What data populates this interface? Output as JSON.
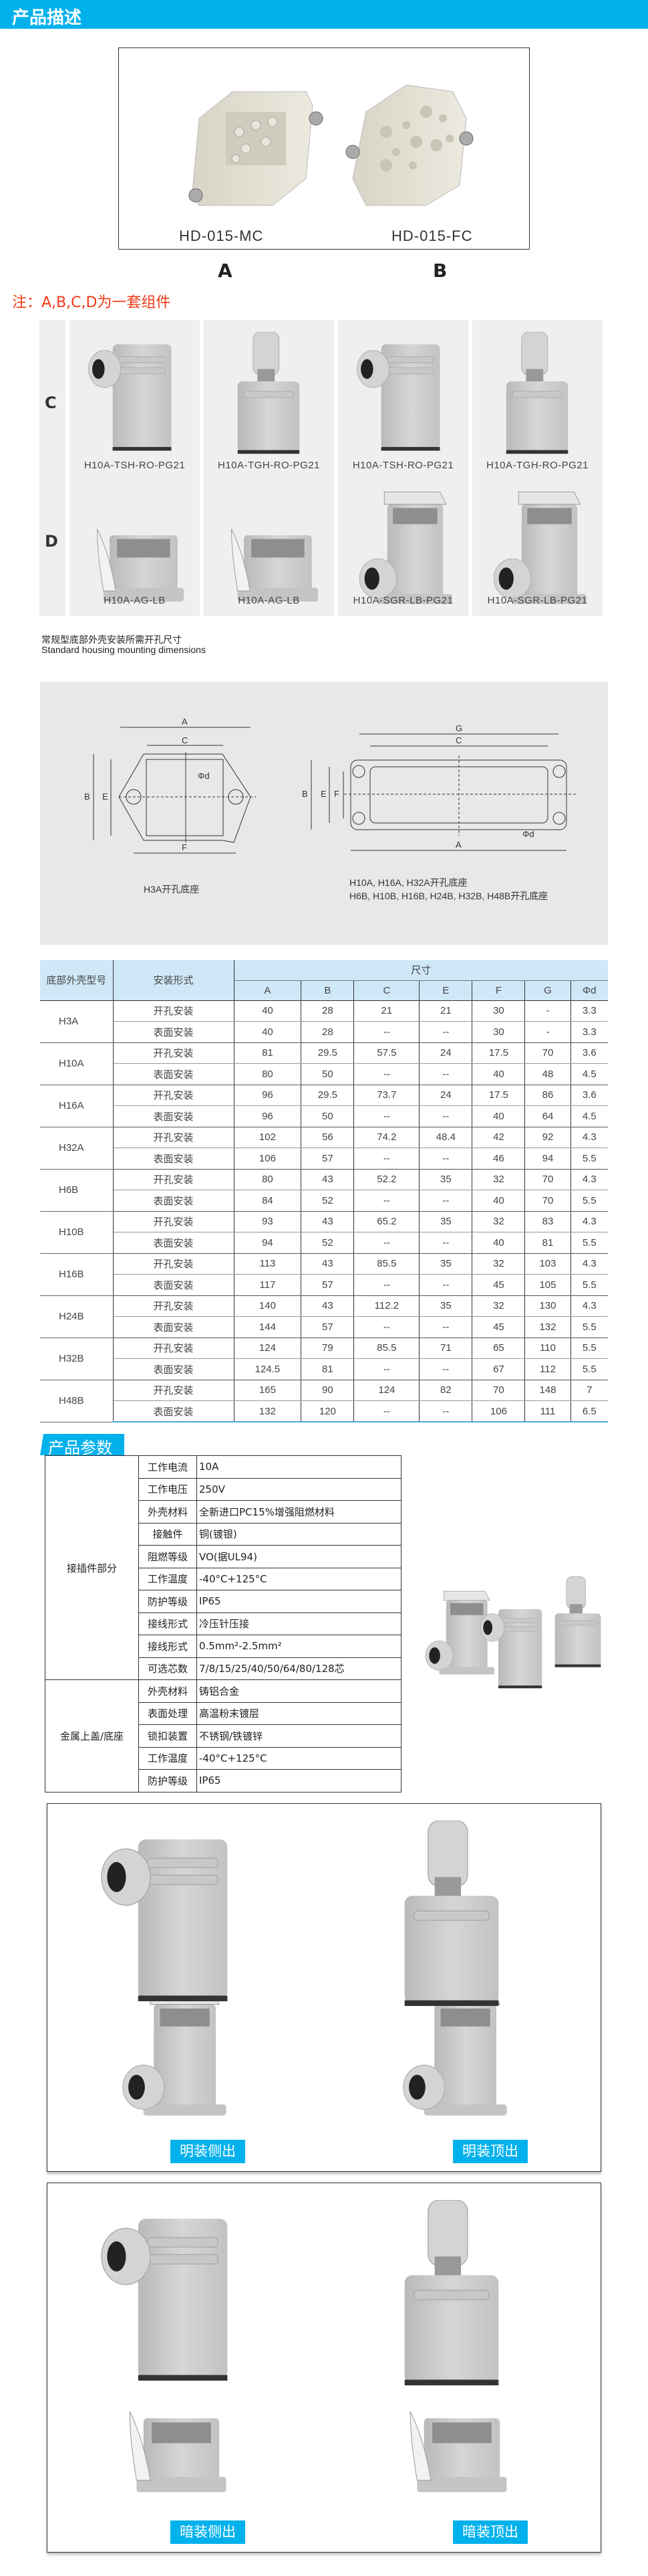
{
  "header": {
    "title": "产品描述"
  },
  "products": [
    {
      "name": "HD-015-MC",
      "letter": "A"
    },
    {
      "name": "HD-015-FC",
      "letter": "B"
    }
  ],
  "note": "注：A,B,C,D为一套组件",
  "grid": {
    "rows": [
      {
        "label": "C",
        "items": [
          "H10A-TSH-RO-PG21",
          "H10A-TGH-RO-PG21",
          "H10A-TSH-RO-PG21",
          "H10A-TGH-RO-PG21"
        ]
      },
      {
        "label": "D",
        "items": [
          "H10A-AG-LB",
          "H10A-AG-LB",
          "H10A-SGR-LB-PG21",
          "H10A-SGR-LB-PG21"
        ]
      }
    ]
  },
  "standard": {
    "cn": "常规型底部外壳安装所需开孔尺寸",
    "en": "Standard housing mounting dimensions"
  },
  "drawing": {
    "labels": {
      "A": "A",
      "B": "B",
      "C": "C",
      "E": "E",
      "F": "F",
      "G": "G",
      "d": "Φd"
    },
    "left_caption": "H3A开孔底座",
    "right_caption1": "H10A, H16A, H32A开孔底座",
    "right_caption2": "H6B, H10B, H16B, H24B, H32B, H48B开孔底座"
  },
  "dim_table": {
    "col_model": "底部外壳型号",
    "col_mount": "安装形式",
    "col_size": "尺寸",
    "cols": [
      "A",
      "B",
      "C",
      "E",
      "F",
      "G",
      "Φd"
    ],
    "groups": [
      {
        "model": "H3A",
        "rows": [
          [
            "开孔安装",
            "40",
            "28",
            "21",
            "21",
            "30",
            "-",
            "3.3"
          ],
          [
            "表面安装",
            "40",
            "28",
            "--",
            "--",
            "30",
            "-",
            "3.3"
          ]
        ]
      },
      {
        "model": "H10A",
        "rows": [
          [
            "开孔安装",
            "81",
            "29.5",
            "57.5",
            "24",
            "17.5",
            "70",
            "3.6"
          ],
          [
            "表面安装",
            "80",
            "50",
            "--",
            "--",
            "40",
            "48",
            "4.5"
          ]
        ]
      },
      {
        "model": "H16A",
        "rows": [
          [
            "开孔安装",
            "96",
            "29.5",
            "73.7",
            "24",
            "17.5",
            "86",
            "3.6"
          ],
          [
            "表面安装",
            "96",
            "50",
            "--",
            "--",
            "40",
            "64",
            "4.5"
          ]
        ]
      },
      {
        "model": "H32A",
        "rows": [
          [
            "开孔安装",
            "102",
            "56",
            "74.2",
            "48.4",
            "42",
            "92",
            "4.3"
          ],
          [
            "表面安装",
            "106",
            "57",
            "--",
            "--",
            "46",
            "94",
            "5.5"
          ]
        ]
      },
      {
        "model": "H6B",
        "rows": [
          [
            "开孔安装",
            "80",
            "43",
            "52.2",
            "35",
            "32",
            "70",
            "4.3"
          ],
          [
            "表面安装",
            "84",
            "52",
            "--",
            "--",
            "40",
            "70",
            "5.5"
          ]
        ]
      },
      {
        "model": "H10B",
        "rows": [
          [
            "开孔安装",
            "93",
            "43",
            "65.2",
            "35",
            "32",
            "83",
            "4.3"
          ],
          [
            "表面安装",
            "94",
            "52",
            "--",
            "--",
            "40",
            "81",
            "5.5"
          ]
        ]
      },
      {
        "model": "H16B",
        "rows": [
          [
            "开孔安装",
            "113",
            "43",
            "85.5",
            "35",
            "32",
            "103",
            "4.3"
          ],
          [
            "表面安装",
            "117",
            "57",
            "--",
            "--",
            "45",
            "105",
            "5.5"
          ]
        ]
      },
      {
        "model": "H24B",
        "rows": [
          [
            "开孔安装",
            "140",
            "43",
            "112.2",
            "35",
            "32",
            "130",
            "4.3"
          ],
          [
            "表面安装",
            "144",
            "57",
            "--",
            "--",
            "45",
            "132",
            "5.5"
          ]
        ]
      },
      {
        "model": "H32B",
        "rows": [
          [
            "开孔安装",
            "124",
            "79",
            "85.5",
            "71",
            "65",
            "110",
            "5.5"
          ],
          [
            "表面安装",
            "124.5",
            "81",
            "--",
            "--",
            "67",
            "112",
            "5.5"
          ]
        ]
      },
      {
        "model": "H48B",
        "rows": [
          [
            "开孔安装",
            "165",
            "90",
            "124",
            "82",
            "70",
            "148",
            "7"
          ],
          [
            "表面安装",
            "132",
            "120",
            "--",
            "--",
            "106",
            "111",
            "6.5"
          ]
        ]
      }
    ]
  },
  "params": {
    "title": "产品参数",
    "groups": [
      {
        "name": "接插件部分",
        "rows": [
          [
            "工作电流",
            "10A"
          ],
          [
            "工作电压",
            "250V"
          ],
          [
            "外壳材料",
            "全新进口PC15%增强阻燃材料"
          ],
          [
            "接触件",
            "铜(镀银)"
          ],
          [
            "阻燃等级",
            "VO(据UL94)"
          ],
          [
            "工作温度",
            "-40°C+125°C"
          ],
          [
            "防护等级",
            "IP65"
          ],
          [
            "接线形式",
            "冷压针压接"
          ],
          [
            "接线形式",
            "0.5mm²-2.5mm²"
          ],
          [
            "可选芯数",
            "7/8/15/25/40/50/64/80/128芯"
          ]
        ]
      },
      {
        "name": "金属上盖/底座",
        "rows": [
          [
            "外壳材料",
            "铸铝合金"
          ],
          [
            "表面处理",
            "高温粉末镀层"
          ],
          [
            "锁扣装置",
            "不锈钢/铁镀锌"
          ],
          [
            "工作温度",
            "-40°C+125°C"
          ],
          [
            "防护等级",
            "IP65"
          ]
        ]
      }
    ]
  },
  "photos": [
    {
      "labels": [
        "明装侧出",
        "明装顶出"
      ]
    },
    {
      "labels": [
        "暗装侧出",
        "暗装顶出"
      ]
    }
  ],
  "colors": {
    "accent": "#00b1ec",
    "note": "#f03a17",
    "table_header": "#cfe8f8"
  }
}
